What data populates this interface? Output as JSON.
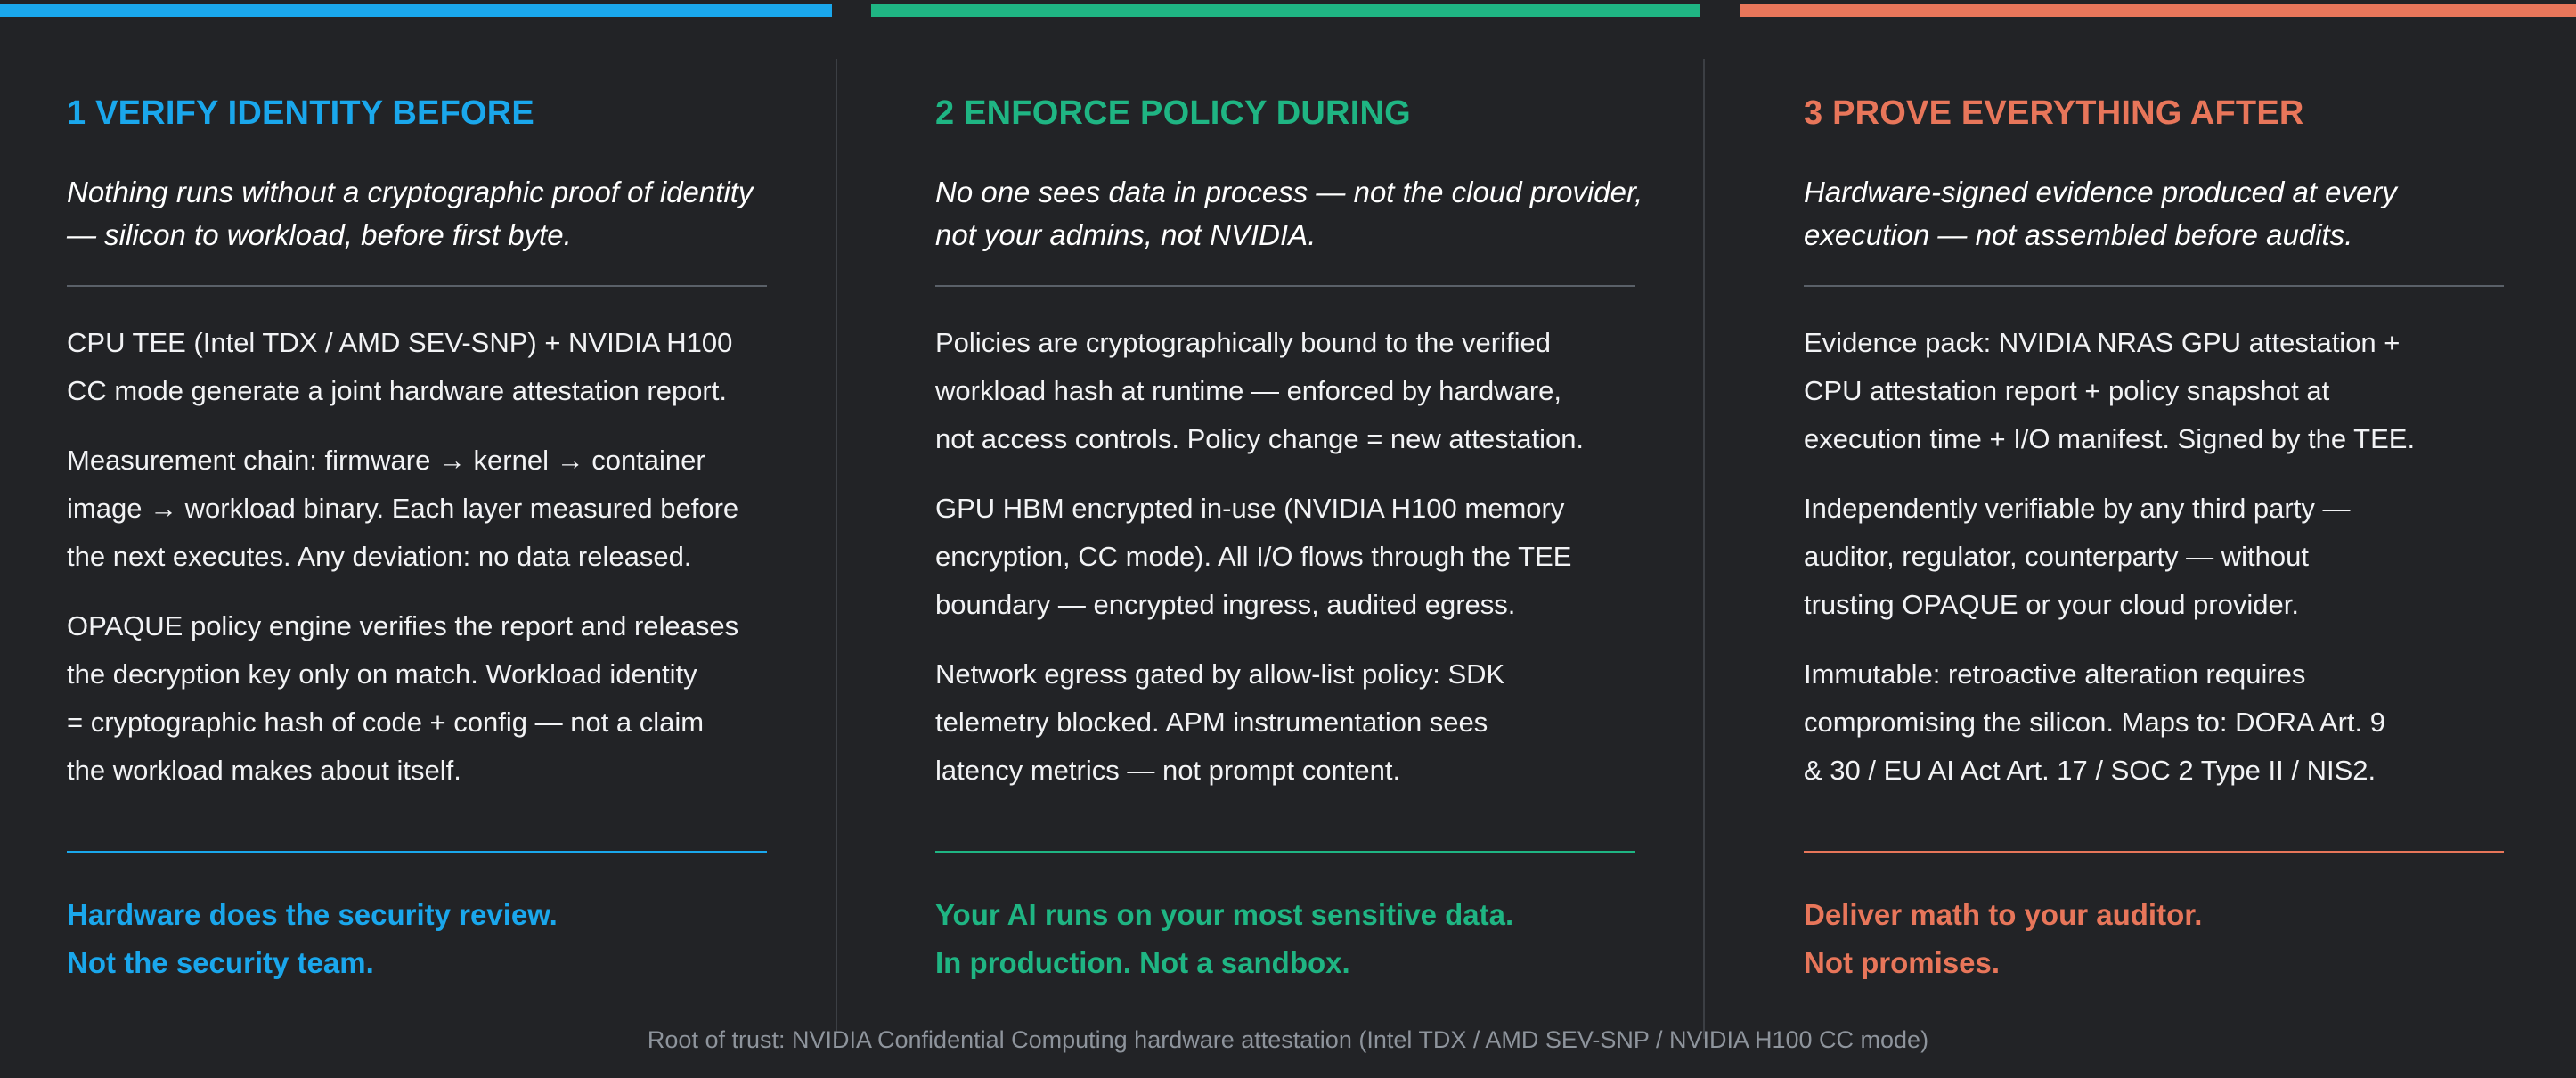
{
  "colors": {
    "background": "#222326",
    "blue": "#1aa7ec",
    "green": "#1fb583",
    "orange": "#e8765a",
    "divider": "#5a6068",
    "footer_text": "#8e949c"
  },
  "columns": [
    {
      "heading": "1 VERIFY IDENTITY BEFORE",
      "tagline": "Nothing runs without a cryptographic proof of identity — silicon to workload, before first byte.",
      "paragraphs": [
        "CPU TEE (Intel TDX / AMD SEV-SNP) + NVIDIA H100\nCC mode generate a joint hardware attestation report.",
        "Measurement chain: firmware → kernel → container\nimage → workload binary. Each layer measured before\nthe next executes. Any deviation: no data released.",
        "OPAQUE policy engine verifies the report and releases\nthe decryption key only on match. Workload identity\n= cryptographic hash of code + config — not a claim\nthe workload makes about itself."
      ],
      "punch_line_1": "Hardware does the security review.",
      "punch_line_2": "Not the security team."
    },
    {
      "heading": "2 ENFORCE POLICY DURING",
      "tagline": "No one sees data in process — not the cloud provider, not your admins, not NVIDIA.",
      "paragraphs": [
        "Policies are cryptographically bound to the verified\nworkload hash at runtime — enforced by hardware,\nnot access controls. Policy change = new attestation.",
        "GPU HBM encrypted in-use (NVIDIA H100 memory\nencryption, CC mode). All I/O flows through the TEE\nboundary — encrypted ingress, audited egress.",
        "Network egress gated by allow-list policy: SDK\ntelemetry blocked. APM instrumentation sees\nlatency metrics — not prompt content."
      ],
      "punch_line_1": "Your AI runs on your most sensitive data.",
      "punch_line_2": "In production. Not a sandbox."
    },
    {
      "heading": "3 PROVE EVERYTHING AFTER",
      "tagline": "Hardware-signed evidence produced at every execution — not assembled before audits.",
      "paragraphs": [
        "Evidence pack: NVIDIA NRAS GPU attestation +\nCPU attestation report + policy snapshot at\nexecution time + I/O manifest. Signed by the TEE.",
        "Independently verifiable by any third party —\nauditor, regulator, counterparty — without\ntrusting OPAQUE or your cloud provider.",
        "Immutable: retroactive alteration requires\ncompromising the silicon. Maps to: DORA Art. 9\n& 30 / EU AI Act Art. 17 / SOC 2 Type II / NIS2."
      ],
      "punch_line_1": "Deliver math to your auditor.",
      "punch_line_2": "Not promises."
    }
  ],
  "footer": "Root of trust: NVIDIA Confidential Computing hardware attestation (Intel TDX / AMD SEV-SNP / NVIDIA H100 CC mode)"
}
